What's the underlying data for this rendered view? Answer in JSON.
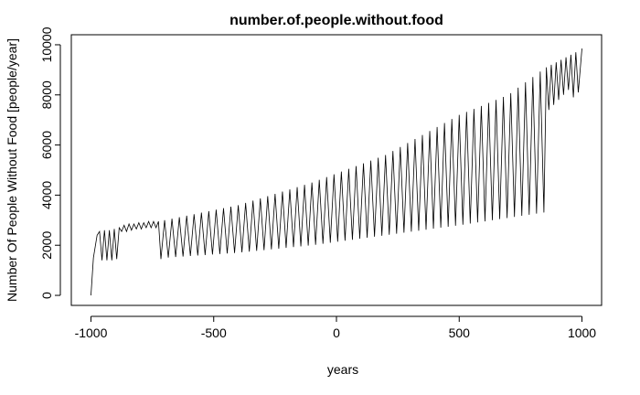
{
  "chart_data": {
    "type": "line",
    "title": "number.of.people.without.food",
    "x_label": "years",
    "y_label": "Number Of People Without Food [people/year]",
    "color": "#000000",
    "xlim": [
      -1080,
      1080
    ],
    "ylim": [
      -400,
      10400
    ],
    "xticks": [
      -1000,
      -500,
      0,
      500,
      1000
    ],
    "yticks": [
      0,
      2000,
      4000,
      6000,
      8000,
      10000
    ],
    "x": [
      -1000,
      -990,
      -975,
      -965,
      -955,
      -945,
      -935,
      -925,
      -915,
      -905,
      -895,
      -885,
      -875,
      -865,
      -855,
      -845,
      -835,
      -825,
      -815,
      -805,
      -795,
      -785,
      -775,
      -765,
      -755,
      -745,
      -735,
      -725,
      -715,
      -700,
      -685,
      -670,
      -655,
      -640,
      -625,
      -610,
      -595,
      -580,
      -565,
      -550,
      -535,
      -520,
      -505,
      -490,
      -475,
      -460,
      -445,
      -430,
      -415,
      -400,
      -385,
      -370,
      -355,
      -340,
      -325,
      -310,
      -295,
      -280,
      -265,
      -250,
      -235,
      -220,
      -205,
      -190,
      -175,
      -160,
      -145,
      -130,
      -115,
      -100,
      -85,
      -70,
      -55,
      -40,
      -25,
      -10,
      5,
      20,
      35,
      50,
      65,
      80,
      95,
      110,
      125,
      140,
      155,
      170,
      185,
      200,
      215,
      230,
      245,
      260,
      275,
      290,
      305,
      320,
      335,
      350,
      365,
      380,
      395,
      410,
      425,
      440,
      455,
      470,
      485,
      500,
      515,
      530,
      545,
      560,
      575,
      590,
      605,
      620,
      635,
      650,
      665,
      680,
      695,
      710,
      725,
      740,
      755,
      770,
      785,
      800,
      815,
      830,
      845,
      855,
      865,
      875,
      885,
      895,
      905,
      915,
      925,
      935,
      945,
      955,
      965,
      975,
      985,
      1000
    ],
    "values": [
      0,
      1500,
      2400,
      2550,
      1400,
      2600,
      1400,
      2600,
      1400,
      2650,
      1450,
      2700,
      2550,
      2800,
      2550,
      2850,
      2600,
      2850,
      2650,
      2900,
      2650,
      2900,
      2700,
      2950,
      2700,
      2950,
      2700,
      2950,
      1450,
      3000,
      1510,
      3060,
      1530,
      3120,
      1550,
      3180,
      1570,
      3240,
      1590,
      3300,
      1610,
      3360,
      1630,
      3420,
      1650,
      3480,
      1670,
      3540,
      1690,
      3600,
      1715,
      3690,
      1745,
      3780,
      1775,
      3870,
      1805,
      3960,
      1835,
      4050,
      1865,
      4140,
      1895,
      4230,
      1925,
      4320,
      1955,
      4410,
      1985,
      4500,
      2020,
      4610,
      2060,
      4720,
      2100,
      4830,
      2140,
      4940,
      2180,
      5050,
      2220,
      5160,
      2260,
      5270,
      2300,
      5380,
      2340,
      5490,
      2380,
      5600,
      2420,
      5760,
      2460,
      5920,
      2500,
      6080,
      2540,
      6240,
      2580,
      6400,
      2620,
      6560,
      2660,
      6720,
      2700,
      6880,
      2740,
      7040,
      2780,
      7200,
      2822,
      7320,
      2866,
      7440,
      2910,
      7560,
      2954,
      7680,
      2998,
      7800,
      3042,
      7920,
      3086,
      8070,
      3130,
      8290,
      3174,
      8500,
      3218,
      8710,
      3262,
      8930,
      3306,
      9100,
      7400,
      9200,
      7600,
      9300,
      7800,
      9400,
      8000,
      9500,
      8200,
      9600,
      7900,
      9700,
      8100,
      9850
    ]
  }
}
